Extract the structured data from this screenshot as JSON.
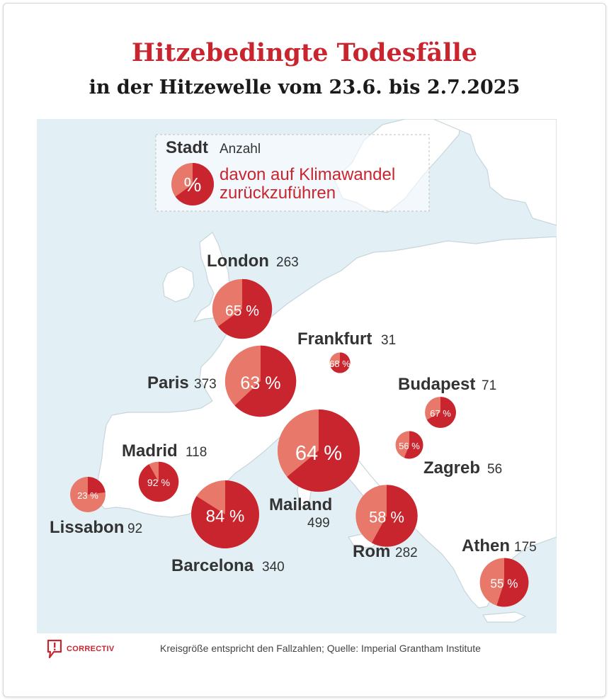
{
  "title": "Hitzebedingte Todesfälle",
  "subtitle": "in der Hitzewelle vom 23.6. bis 2.7.2025",
  "legend": {
    "city_label": "Stadt",
    "count_label": "Anzahl",
    "pct_symbol": "%",
    "pct_text_line1": "davon auf Klimawandel",
    "pct_text_line2": "zurückzuführen"
  },
  "colors": {
    "dark_red": "#c9252f",
    "light_red": "#e8796a",
    "sea": "#e2f0f6",
    "land": "#ffffff",
    "title_red": "#c9252f"
  },
  "cities": [
    {
      "name": "London",
      "count": 263,
      "pct": 65,
      "pct_label": "65 %"
    },
    {
      "name": "Frankfurt",
      "count": 31,
      "pct": 68,
      "pct_label": "68 %"
    },
    {
      "name": "Paris",
      "count": 373,
      "pct": 63,
      "pct_label": "63 %"
    },
    {
      "name": "Budapest",
      "count": 71,
      "pct": 67,
      "pct_label": "67 %"
    },
    {
      "name": "Zagreb",
      "count": 56,
      "pct": 56,
      "pct_label": "56 %"
    },
    {
      "name": "Madrid",
      "count": 118,
      "pct": 92,
      "pct_label": "92 %"
    },
    {
      "name": "Mailand",
      "count": 499,
      "pct": 64,
      "pct_label": "64 %"
    },
    {
      "name": "Lissabon",
      "count": 92,
      "pct": 23,
      "pct_label": "23 %"
    },
    {
      "name": "Barcelona",
      "count": 340,
      "pct": 84,
      "pct_label": "84 %"
    },
    {
      "name": "Rom",
      "count": 282,
      "pct": 58,
      "pct_label": "58 %"
    },
    {
      "name": "Athen",
      "count": 175,
      "pct": 55,
      "pct_label": "55 %"
    }
  ],
  "footer": {
    "logo_text": "CORRECTIV",
    "source": "Kreisgröße entspricht den Fallzahlen; Quelle: Imperial Grantham Institute"
  }
}
